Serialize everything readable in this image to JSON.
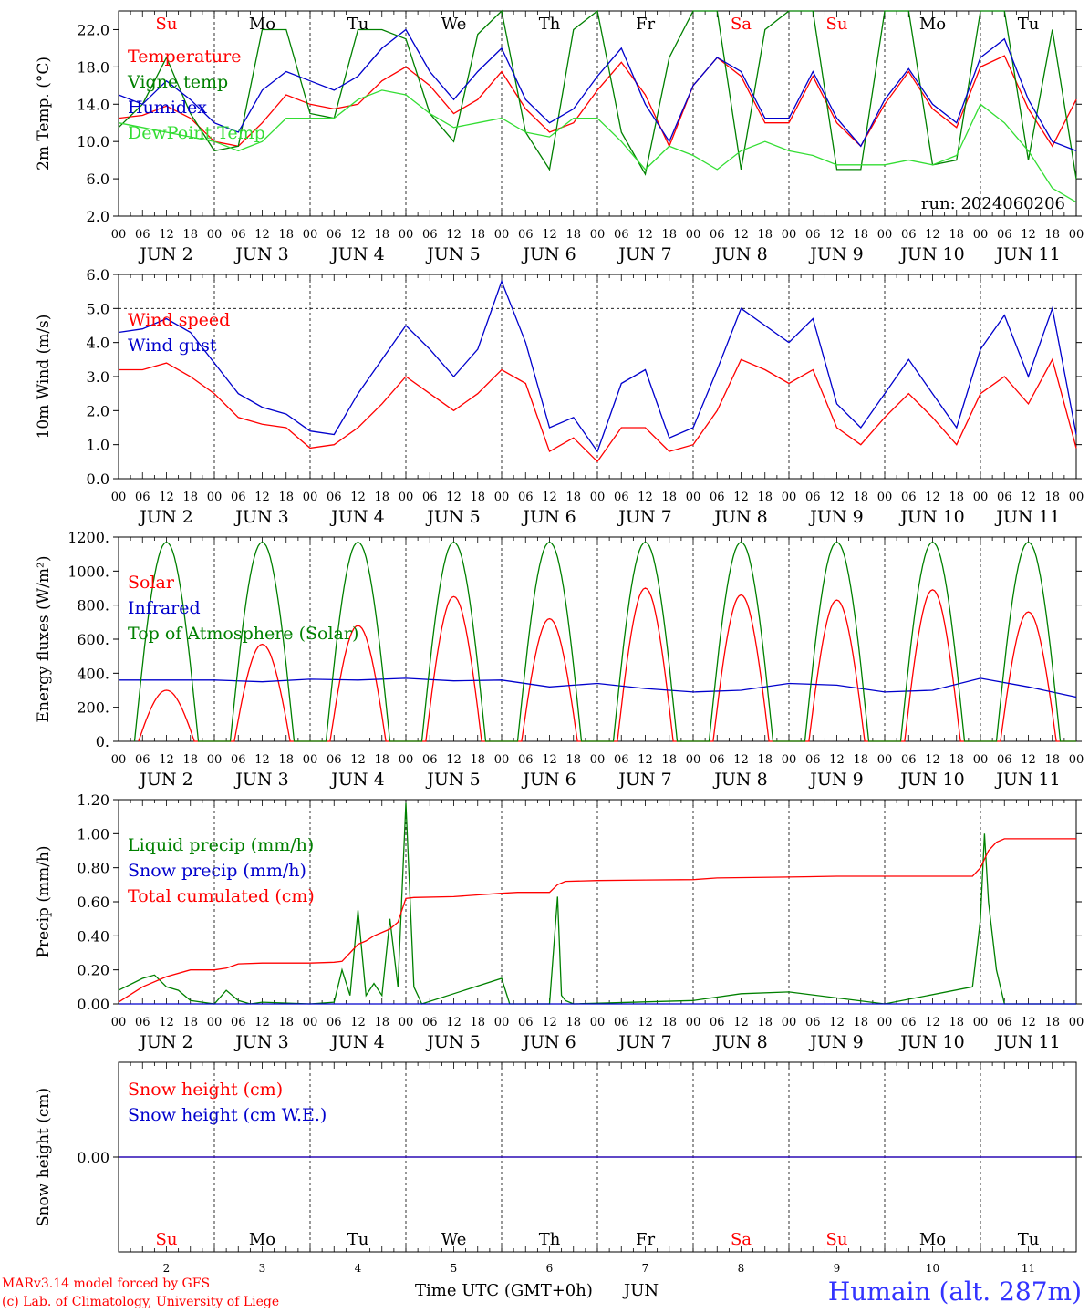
{
  "run_label": "run: 2024060206",
  "day_names": [
    "Su",
    "Mo",
    "Tu",
    "We",
    "Th",
    "Fr",
    "Sa",
    "Su",
    "Mo",
    "Tu"
  ],
  "day_name_colors": [
    "#ff0000",
    "#000000",
    "#000000",
    "#000000",
    "#000000",
    "#000000",
    "#ff0000",
    "#ff0000",
    "#000000",
    "#000000"
  ],
  "hour_ticks": [
    "00",
    "06",
    "12",
    "18"
  ],
  "end_hour_tick": "00",
  "date_labels": [
    "JUN  2",
    "JUN  3",
    "JUN  4",
    "JUN  5",
    "JUN  6",
    "JUN  7",
    "JUN  8",
    "JUN  9",
    "JUN 10",
    "JUN 11"
  ],
  "bottom_day_numbers": [
    "2",
    "3",
    "4",
    "5",
    "6",
    "7",
    "8",
    "9",
    "10",
    "11"
  ],
  "footer": {
    "credit_line1": "MARv3.14 model forced by GFS",
    "credit_line2": "(c) Lab. of Climatology, University of Liege",
    "x_axis_title": "Time UTC (GMT+0h)",
    "x_axis_month": "JUN",
    "station": "Humain (alt. 287m)"
  },
  "chart_data": [
    {
      "type": "line",
      "ylabel": "2m Temp. (°C)",
      "ylim": [
        2,
        24
      ],
      "yticks": [
        2,
        6,
        10,
        14,
        18,
        22
      ],
      "ytick_labels": [
        "2.0",
        "6.0",
        "10.0",
        "14.0",
        "18.0",
        "22.0"
      ],
      "x_unit": "hours since Jun 2 00 UTC",
      "xlim": [
        0,
        240
      ],
      "series": [
        {
          "name": "Temperature",
          "color": "#ff0000",
          "x": [
            0,
            6,
            12,
            18,
            24,
            30,
            36,
            42,
            48,
            54,
            60,
            66,
            72,
            78,
            84,
            90,
            96,
            102,
            108,
            114,
            120,
            126,
            132,
            138,
            144,
            150,
            156,
            162,
            168,
            174,
            180,
            186,
            192,
            198,
            204,
            210,
            216,
            222,
            228,
            234,
            240
          ],
          "values": [
            12.5,
            12.8,
            13.8,
            12.5,
            10.0,
            9.5,
            12.0,
            15.0,
            14.0,
            13.5,
            14.0,
            16.5,
            18.0,
            16.0,
            13.0,
            14.5,
            17.5,
            13.5,
            11.0,
            12.0,
            15.5,
            18.5,
            15.0,
            9.5,
            16.0,
            19.0,
            17.0,
            12.0,
            12.0,
            17.0,
            12.0,
            9.5,
            14.0,
            17.5,
            13.5,
            11.5,
            18.0,
            19.2,
            13.5,
            9.5,
            14.5
          ]
        },
        {
          "name": "Vigne temp",
          "color": "#008000",
          "x": [
            0,
            6,
            12,
            18,
            24,
            30,
            36,
            42,
            48,
            54,
            60,
            66,
            72,
            78,
            84,
            90,
            96,
            102,
            108,
            114,
            120,
            126,
            132,
            138,
            144,
            150,
            156,
            162,
            168,
            174,
            180,
            186,
            192,
            198,
            204,
            210,
            216,
            222,
            228,
            234,
            240
          ],
          "values": [
            11.5,
            14.0,
            19.0,
            13.0,
            9.0,
            9.5,
            22.0,
            22.0,
            13.0,
            12.5,
            22.0,
            22.0,
            21.0,
            13.0,
            10.0,
            21.5,
            24.0,
            11.0,
            7.0,
            22.0,
            24.0,
            11.0,
            6.5,
            19.0,
            24.0,
            24.0,
            7.0,
            22.0,
            24.0,
            24.0,
            7.0,
            7.0,
            24.0,
            24.0,
            7.5,
            8.0,
            24.0,
            24.0,
            8.0,
            22.0,
            6.0
          ]
        },
        {
          "name": "Humidex",
          "color": "#0000cc",
          "x": [
            0,
            6,
            12,
            18,
            24,
            30,
            36,
            42,
            48,
            54,
            60,
            66,
            72,
            78,
            84,
            90,
            96,
            102,
            108,
            114,
            120,
            126,
            132,
            138,
            144,
            150,
            156,
            162,
            168,
            174,
            180,
            186,
            192,
            198,
            204,
            210,
            216,
            222,
            228,
            234,
            240
          ],
          "values": [
            15.0,
            14.0,
            16.5,
            14.5,
            12.0,
            11.0,
            15.5,
            17.5,
            16.5,
            15.5,
            17.0,
            20.0,
            22.0,
            17.5,
            14.5,
            17.5,
            20.0,
            14.5,
            12.0,
            13.5,
            17.0,
            20.0,
            14.0,
            10.0,
            16.0,
            19.0,
            17.5,
            12.5,
            12.5,
            17.5,
            12.5,
            9.5,
            14.5,
            17.8,
            14.0,
            12.0,
            19.0,
            21.0,
            14.5,
            10.0,
            9.0
          ]
        },
        {
          "name": "DewPoint Temp",
          "color": "#33dd33",
          "x": [
            0,
            6,
            12,
            18,
            24,
            30,
            36,
            42,
            48,
            54,
            60,
            66,
            72,
            78,
            84,
            90,
            96,
            102,
            108,
            114,
            120,
            126,
            132,
            138,
            144,
            150,
            156,
            162,
            168,
            174,
            180,
            186,
            192,
            198,
            204,
            210,
            216,
            222,
            228,
            234,
            240
          ],
          "values": [
            12.0,
            11.5,
            11.0,
            10.5,
            10.0,
            9.0,
            10.0,
            12.5,
            12.5,
            12.5,
            14.5,
            15.5,
            15.0,
            13.0,
            11.5,
            12.0,
            12.5,
            11.0,
            10.5,
            12.5,
            12.5,
            10.0,
            7.0,
            9.5,
            8.5,
            7.0,
            9.0,
            10.0,
            9.0,
            8.5,
            7.5,
            7.5,
            7.5,
            8.0,
            7.5,
            8.5,
            14.0,
            12.0,
            9.0,
            5.0,
            3.5
          ]
        }
      ]
    },
    {
      "type": "line",
      "ylabel": "10m Wind (m/s)",
      "ylim": [
        0,
        6
      ],
      "yticks": [
        0,
        1,
        2,
        3,
        4,
        5,
        6
      ],
      "ytick_labels": [
        "0.0",
        "1.0",
        "2.0",
        "3.0",
        "4.0",
        "5.0",
        "6.0"
      ],
      "reference_line": 5.0,
      "x_unit": "hours since Jun 2 00 UTC",
      "xlim": [
        0,
        240
      ],
      "series": [
        {
          "name": "Wind speed",
          "color": "#ff0000",
          "x": [
            0,
            6,
            12,
            18,
            24,
            30,
            36,
            42,
            48,
            54,
            60,
            66,
            72,
            78,
            84,
            90,
            96,
            102,
            108,
            114,
            120,
            126,
            132,
            138,
            144,
            150,
            156,
            162,
            168,
            174,
            180,
            186,
            192,
            198,
            204,
            210,
            216,
            222,
            228,
            234,
            240
          ],
          "values": [
            3.2,
            3.2,
            3.4,
            3.0,
            2.5,
            1.8,
            1.6,
            1.5,
            0.9,
            1.0,
            1.5,
            2.2,
            3.0,
            2.5,
            2.0,
            2.5,
            3.2,
            2.8,
            0.8,
            1.2,
            0.5,
            1.5,
            1.5,
            0.8,
            1.0,
            2.0,
            3.5,
            3.2,
            2.8,
            3.2,
            1.5,
            1.0,
            1.8,
            2.5,
            1.8,
            1.0,
            2.5,
            3.0,
            2.2,
            3.5,
            0.9
          ]
        },
        {
          "name": "Wind gust",
          "color": "#0000cc",
          "x": [
            0,
            6,
            12,
            18,
            24,
            30,
            36,
            42,
            48,
            54,
            60,
            66,
            72,
            78,
            84,
            90,
            96,
            102,
            108,
            114,
            120,
            126,
            132,
            138,
            144,
            150,
            156,
            162,
            168,
            174,
            180,
            186,
            192,
            198,
            204,
            210,
            216,
            222,
            228,
            234,
            240
          ],
          "values": [
            4.3,
            4.4,
            4.7,
            4.3,
            3.4,
            2.5,
            2.1,
            1.9,
            1.4,
            1.3,
            2.5,
            3.5,
            4.5,
            3.8,
            3.0,
            3.8,
            5.8,
            4.0,
            1.5,
            1.8,
            0.8,
            2.8,
            3.2,
            1.2,
            1.5,
            3.2,
            5.0,
            4.5,
            4.0,
            4.7,
            2.2,
            1.5,
            2.5,
            3.5,
            2.5,
            1.5,
            3.8,
            4.8,
            3.0,
            5.0,
            1.3
          ]
        }
      ]
    },
    {
      "type": "line",
      "ylabel": "Energy fluxes (W/m²)",
      "ylim": [
        0,
        1200
      ],
      "yticks": [
        0,
        200,
        400,
        600,
        800,
        1000,
        1200
      ],
      "ytick_labels": [
        "0.",
        "200.",
        "400.",
        "600.",
        "800.",
        "1000.",
        "1200."
      ],
      "x_unit": "hours since Jun 2 00 UTC",
      "xlim": [
        0,
        240
      ],
      "series": [
        {
          "name": "Solar",
          "color": "#ff0000",
          "peaks": [
            300,
            570,
            680,
            850,
            720,
            900,
            860,
            830,
            890,
            760
          ]
        },
        {
          "name": "Infrared",
          "color": "#0000cc",
          "x": [
            0,
            12,
            24,
            36,
            48,
            60,
            72,
            84,
            96,
            108,
            120,
            132,
            144,
            156,
            168,
            180,
            192,
            204,
            216,
            228,
            240
          ],
          "values": [
            360,
            360,
            360,
            350,
            365,
            360,
            370,
            355,
            360,
            320,
            340,
            310,
            290,
            300,
            340,
            330,
            290,
            300,
            370,
            320,
            260
          ]
        },
        {
          "name": "Top of Atmosphere (Solar)",
          "color": "#008000",
          "daily_peak": 1170,
          "sunrise_hour": 4,
          "sunset_hour": 20
        }
      ]
    },
    {
      "type": "line",
      "ylabel": "Precip (mm/h)",
      "ylim": [
        0,
        1.2
      ],
      "yticks": [
        0,
        0.2,
        0.4,
        0.6,
        0.8,
        1.0,
        1.2
      ],
      "ytick_labels": [
        "0.00",
        "0.20",
        "0.40",
        "0.60",
        "0.80",
        "1.00",
        "1.20"
      ],
      "x_unit": "hours since Jun 2 00 UTC",
      "xlim": [
        0,
        240
      ],
      "series": [
        {
          "name": "Liquid precip (mm/h)",
          "color": "#008000",
          "x": [
            0,
            6,
            9,
            12,
            15,
            18,
            24,
            27,
            30,
            33,
            36,
            48,
            54,
            56,
            58,
            60,
            62,
            64,
            66,
            68,
            70,
            72,
            74,
            76,
            96,
            98,
            108,
            110,
            111,
            112,
            114,
            144,
            156,
            168,
            192,
            214,
            216,
            217,
            218,
            220,
            222,
            240
          ],
          "values": [
            0.08,
            0.15,
            0.17,
            0.1,
            0.08,
            0.02,
            0.0,
            0.08,
            0.02,
            0.0,
            0.01,
            0.0,
            0.01,
            0.2,
            0.05,
            0.55,
            0.05,
            0.12,
            0.05,
            0.5,
            0.1,
            1.18,
            0.1,
            0.0,
            0.15,
            0.0,
            0.0,
            0.63,
            0.05,
            0.02,
            0.0,
            0.02,
            0.06,
            0.07,
            0.0,
            0.1,
            0.5,
            1.0,
            0.6,
            0.2,
            0.0,
            0.0
          ]
        },
        {
          "name": "Snow precip (mm/h)",
          "color": "#0000cc",
          "x": [
            0,
            240
          ],
          "values": [
            0.0,
            0.0
          ]
        },
        {
          "name": "Total cumulated (cm)",
          "color": "#ff0000",
          "x": [
            0,
            6,
            12,
            18,
            24,
            27,
            30,
            36,
            48,
            54,
            56,
            58,
            60,
            62,
            64,
            66,
            68,
            70,
            72,
            74,
            84,
            90,
            96,
            100,
            108,
            110,
            112,
            120,
            132,
            144,
            150,
            168,
            180,
            204,
            214,
            216,
            218,
            220,
            222,
            240
          ],
          "values": [
            0.01,
            0.1,
            0.16,
            0.2,
            0.2,
            0.21,
            0.235,
            0.24,
            0.24,
            0.245,
            0.25,
            0.3,
            0.35,
            0.37,
            0.4,
            0.42,
            0.44,
            0.48,
            0.62,
            0.625,
            0.63,
            0.64,
            0.65,
            0.655,
            0.655,
            0.7,
            0.72,
            0.725,
            0.728,
            0.73,
            0.74,
            0.745,
            0.75,
            0.75,
            0.75,
            0.8,
            0.9,
            0.95,
            0.97,
            0.97
          ]
        }
      ]
    },
    {
      "type": "line",
      "ylabel": "Snow height (cm)",
      "ylim": [
        -1,
        1
      ],
      "yticks": [
        0
      ],
      "ytick_labels": [
        "0.00"
      ],
      "x_unit": "hours since Jun 2 00 UTC",
      "xlim": [
        0,
        240
      ],
      "series": [
        {
          "name": "Snow height (cm)",
          "color": "#ff0000",
          "x": [
            0,
            240
          ],
          "values": [
            0,
            0
          ]
        },
        {
          "name": "Snow height (cm W.E.)",
          "color": "#0000cc",
          "x": [
            0,
            240
          ],
          "values": [
            0,
            0
          ]
        }
      ]
    }
  ]
}
